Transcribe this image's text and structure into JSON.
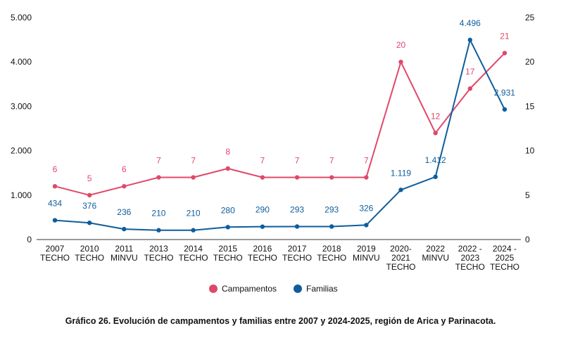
{
  "caption": "Gráfico 26. Evolución de campamentos y familias entre 2007 y 2024-2025, región de Arica y Parinacota.",
  "chart_data": {
    "type": "line",
    "categories": [
      [
        "2007",
        "TECHO"
      ],
      [
        "2010",
        "TECHO"
      ],
      [
        "2011",
        "MINVU"
      ],
      [
        "2013",
        "TECHO"
      ],
      [
        "2014",
        "TECHO"
      ],
      [
        "2015",
        "TECHO"
      ],
      [
        "2016",
        "TECHO"
      ],
      [
        "2017",
        "TECHO"
      ],
      [
        "2018",
        "TECHO"
      ],
      [
        "2019",
        "MINVU"
      ],
      [
        "2020-",
        "2021",
        "TECHO"
      ],
      [
        "2022",
        "MINVU"
      ],
      [
        "2022 -",
        "2023",
        "TECHO"
      ],
      [
        "2024 -",
        "2025",
        "TECHO"
      ]
    ],
    "left_axis": {
      "ylim": [
        0,
        5000
      ],
      "ticks": [
        0,
        1000,
        2000,
        3000,
        4000,
        5000
      ],
      "tick_labels": [
        "0",
        "1.000",
        "2.000",
        "3.000",
        "4.000",
        "5.000"
      ]
    },
    "right_axis": {
      "ylim": [
        0,
        25
      ],
      "ticks": [
        0,
        5,
        10,
        15,
        20,
        25
      ],
      "tick_labels": [
        "0",
        "5",
        "10",
        "15",
        "20",
        "25"
      ]
    },
    "series": [
      {
        "name": "Campamentos",
        "axis": "right",
        "color": "#e0486a",
        "values": [
          6,
          5,
          6,
          7,
          7,
          8,
          7,
          7,
          7,
          7,
          20,
          12,
          17,
          21
        ],
        "labels": [
          "6",
          "5",
          "6",
          "7",
          "7",
          "8",
          "7",
          "7",
          "7",
          "7",
          "20",
          "12",
          "17",
          "21"
        ]
      },
      {
        "name": "Familias",
        "axis": "left",
        "color": "#0e5d9c",
        "values": [
          434,
          376,
          236,
          210,
          210,
          280,
          290,
          293,
          293,
          326,
          1119,
          1412,
          4496,
          2931
        ],
        "labels": [
          "434",
          "376",
          "236",
          "210",
          "210",
          "280",
          "290",
          "293",
          "293",
          "326",
          "1.119",
          "1.412",
          "4.496",
          "2.931"
        ]
      }
    ],
    "legend": {
      "position": "bottom"
    },
    "grid": false
  }
}
